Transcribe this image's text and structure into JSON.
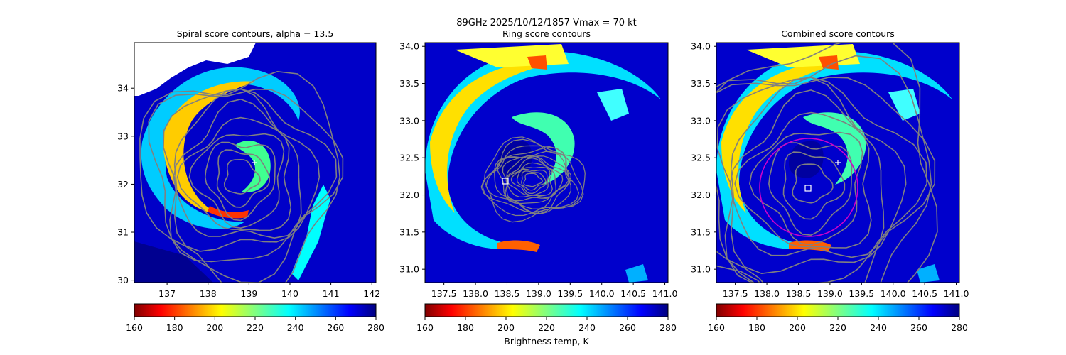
{
  "figure": {
    "suptitle_line1": "89GHz  2025/10/12/1857    Vmax = 70 kt",
    "colorbar_label": "Brightness temp, K"
  },
  "colors": {
    "contour": "#808080",
    "ring": "#cc00cc",
    "marker": "#ffffff",
    "colormap": "jet_r"
  },
  "chart_data": [
    {
      "type": "heatmap",
      "title": "Spiral score contours, alpha = 13.5",
      "xlim": [
        136.2,
        142.1
      ],
      "ylim": [
        29.95,
        34.95
      ],
      "xticks": [
        137,
        138,
        139,
        140,
        141,
        142
      ],
      "yticks": [
        30,
        31,
        32,
        33,
        34
      ],
      "color_range": [
        160,
        280
      ],
      "colorbar_ticks": [
        160,
        180,
        200,
        220,
        240,
        260,
        280
      ],
      "contour_center": [
        138.8,
        32.15
      ],
      "marker_plus": [
        139.1,
        32.45
      ],
      "has_missing_data_top_left": true
    },
    {
      "type": "heatmap",
      "title": "Ring score contours",
      "xlim": [
        137.2,
        141.05
      ],
      "ylim": [
        30.82,
        34.05
      ],
      "xticks": [
        137.5,
        138.0,
        138.5,
        139.0,
        139.5,
        140.0,
        140.5,
        141.0
      ],
      "yticks": [
        31.0,
        31.5,
        32.0,
        32.5,
        33.0,
        33.5,
        34.0
      ],
      "color_range": [
        160,
        280
      ],
      "colorbar_ticks": [
        160,
        180,
        200,
        220,
        240,
        260,
        280
      ],
      "contour_center": [
        138.9,
        32.2
      ],
      "marker_square": [
        138.45,
        32.2
      ]
    },
    {
      "type": "heatmap",
      "title": "Combined score contours",
      "xlim": [
        137.2,
        141.05
      ],
      "ylim": [
        30.82,
        34.05
      ],
      "xticks": [
        137.5,
        138.0,
        138.5,
        139.0,
        139.5,
        140.0,
        140.5,
        141.0
      ],
      "yticks": [
        31.0,
        31.5,
        32.0,
        32.5,
        33.0,
        33.5,
        34.0
      ],
      "color_range": [
        160,
        280
      ],
      "colorbar_ticks": [
        160,
        180,
        200,
        220,
        240,
        260,
        280
      ],
      "contour_center": [
        138.7,
        32.15
      ],
      "marker_square": [
        138.68,
        32.1
      ],
      "marker_plus": [
        139.15,
        32.45
      ],
      "ring_center": [
        138.68,
        32.15
      ]
    }
  ]
}
